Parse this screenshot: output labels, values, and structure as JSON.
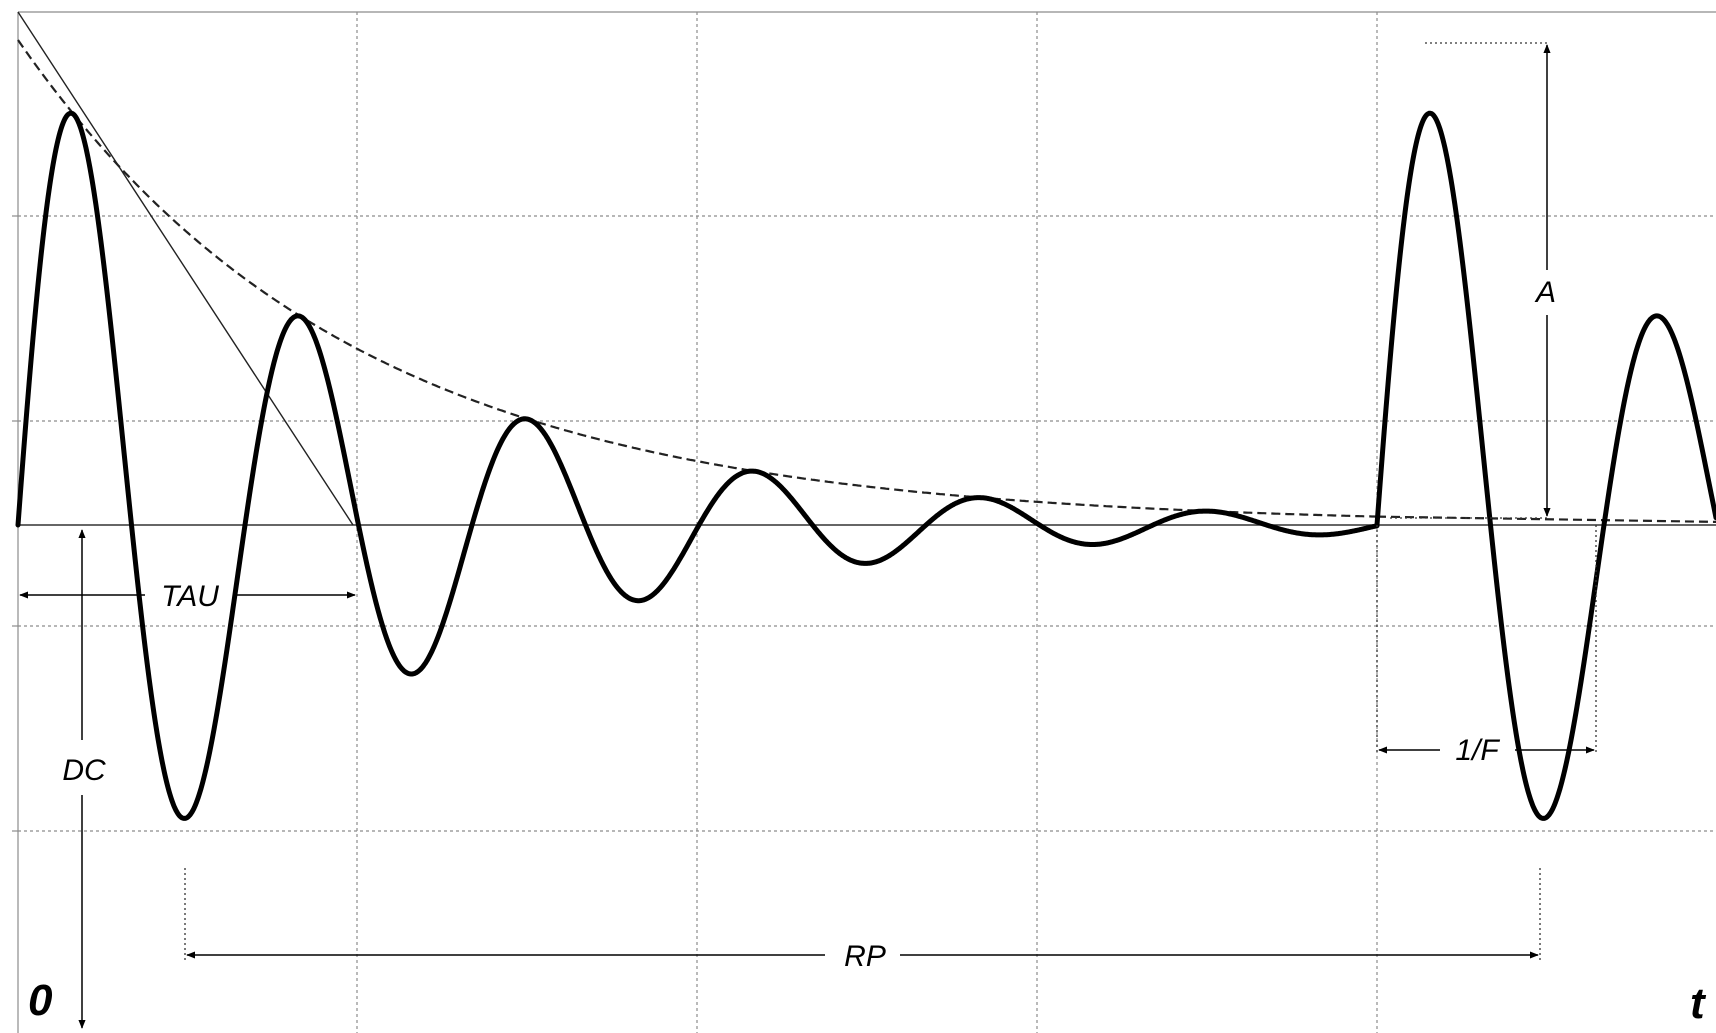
{
  "labels": {
    "tau": "TAU",
    "dc": "DC",
    "rp": "RP",
    "amplitude": "A",
    "period": "1/F",
    "origin": "0",
    "time": "t"
  },
  "colors": {
    "background": "#ffffff",
    "grid": "#8c8c8c",
    "waveform": "#000000"
  }
}
